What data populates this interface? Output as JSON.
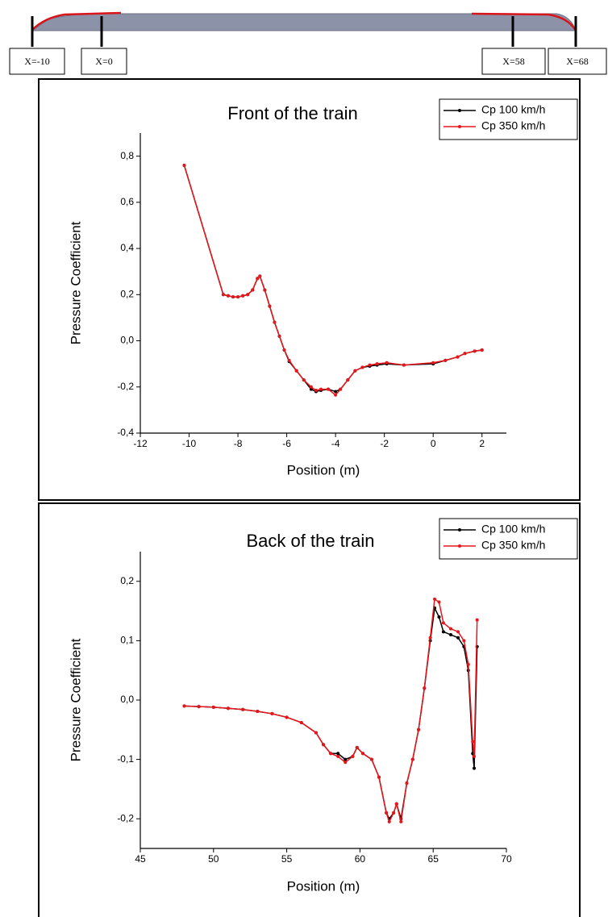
{
  "diagram": {
    "labels": [
      "X=-10",
      "X=0",
      "X=58",
      "X=68"
    ]
  },
  "chart_data": [
    {
      "type": "line",
      "title": "Front of the train",
      "x_label": "Position (m)",
      "y_label": "Pressure Coefficient",
      "xlim": [
        -12,
        3
      ],
      "xticks": [
        -12,
        -10,
        -8,
        -6,
        -4,
        -2,
        0,
        2
      ],
      "ylim": [
        -0.4,
        0.9
      ],
      "yticks": [
        {
          "value": -0.4,
          "label": "-0,4"
        },
        {
          "value": -0.2,
          "label": "-0,2"
        },
        {
          "value": 0,
          "label": "0,0"
        },
        {
          "value": 0.2,
          "label": "0,2"
        },
        {
          "value": 0.4,
          "label": "0,4"
        },
        {
          "value": 0.6,
          "label": "0,6"
        },
        {
          "value": 0.8,
          "label": "0,8"
        }
      ],
      "legend": "upper right",
      "x": [
        -10.2,
        -8.6,
        -8.4,
        -8.2,
        -8.0,
        -7.8,
        -7.6,
        -7.4,
        -7.2,
        -7.1,
        -6.9,
        -6.7,
        -6.5,
        -6.3,
        -6.1,
        -5.9,
        -5.6,
        -5.3,
        -5.0,
        -4.8,
        -4.6,
        -4.3,
        -4.0,
        -3.8,
        -3.5,
        -3.2,
        -2.9,
        -2.6,
        -2.3,
        -1.9,
        -1.2,
        0,
        0.5,
        1.0,
        1.3,
        1.7,
        2.0
      ],
      "series": [
        {
          "name": "Cp 100 km/h",
          "color": "#000000",
          "values": [
            0.76,
            0.2,
            0.195,
            0.19,
            0.19,
            0.195,
            0.2,
            0.22,
            0.27,
            0.28,
            0.22,
            0.15,
            0.08,
            0.02,
            -0.04,
            -0.09,
            -0.13,
            -0.17,
            -0.21,
            -0.22,
            -0.215,
            -0.21,
            -0.22,
            -0.21,
            -0.17,
            -0.13,
            -0.115,
            -0.11,
            -0.105,
            -0.1,
            -0.105,
            -0.1,
            -0.085,
            -0.07,
            -0.055,
            -0.045,
            -0.04
          ]
        },
        {
          "name": "Cp 350 km/h",
          "color": "#e8161b",
          "values": [
            0.76,
            0.2,
            0.195,
            0.19,
            0.19,
            0.195,
            0.2,
            0.22,
            0.27,
            0.28,
            0.22,
            0.15,
            0.08,
            0.02,
            -0.04,
            -0.085,
            -0.13,
            -0.17,
            -0.2,
            -0.215,
            -0.21,
            -0.21,
            -0.235,
            -0.21,
            -0.17,
            -0.13,
            -0.115,
            -0.105,
            -0.1,
            -0.095,
            -0.105,
            -0.095,
            -0.085,
            -0.07,
            -0.055,
            -0.045,
            -0.04
          ]
        }
      ]
    },
    {
      "type": "line",
      "title": "Back of the train",
      "x_label": "Position (m)",
      "y_label": "Pressure Coefficient",
      "xlim": [
        45,
        70
      ],
      "xticks": [
        45,
        50,
        55,
        60,
        65,
        70
      ],
      "ylim": [
        -0.25,
        0.25
      ],
      "yticks": [
        {
          "value": -0.2,
          "label": "-0,2"
        },
        {
          "value": -0.1,
          "label": "-0,1"
        },
        {
          "value": 0,
          "label": "0,0"
        },
        {
          "value": 0.1,
          "label": "0,1"
        },
        {
          "value": 0.2,
          "label": "0,2"
        }
      ],
      "legend": "upper right",
      "x": [
        48,
        49,
        50,
        51,
        52,
        53,
        54,
        55,
        56,
        57,
        57.5,
        58,
        58.5,
        59,
        59.5,
        59.8,
        60.2,
        60.8,
        61.3,
        61.8,
        62,
        62.3,
        62.5,
        62.8,
        63.2,
        63.6,
        64,
        64.4,
        64.8,
        65.1,
        65.4,
        65.7,
        66.2,
        66.7,
        67.1,
        67.4,
        67.7,
        67.8,
        68
      ],
      "series": [
        {
          "name": "Cp 100 km/h",
          "color": "#000000",
          "values": [
            -0.01,
            -0.011,
            -0.012,
            -0.014,
            -0.016,
            -0.019,
            -0.023,
            -0.029,
            -0.038,
            -0.055,
            -0.075,
            -0.09,
            -0.09,
            -0.1,
            -0.095,
            -0.08,
            -0.09,
            -0.1,
            -0.13,
            -0.19,
            -0.2,
            -0.19,
            -0.175,
            -0.2,
            -0.14,
            -0.1,
            -0.05,
            0.02,
            0.1,
            0.155,
            0.14,
            0.115,
            0.11,
            0.105,
            0.09,
            0.05,
            -0.09,
            -0.115,
            0.09
          ]
        },
        {
          "name": "Cp 350 km/h",
          "color": "#e8161b",
          "values": [
            -0.01,
            -0.011,
            -0.012,
            -0.014,
            -0.016,
            -0.019,
            -0.023,
            -0.029,
            -0.038,
            -0.055,
            -0.075,
            -0.09,
            -0.095,
            -0.105,
            -0.095,
            -0.08,
            -0.09,
            -0.1,
            -0.13,
            -0.19,
            -0.205,
            -0.19,
            -0.175,
            -0.205,
            -0.14,
            -0.1,
            -0.05,
            0.02,
            0.105,
            0.17,
            0.165,
            0.13,
            0.12,
            0.115,
            0.1,
            0.06,
            -0.07,
            -0.095,
            0.135
          ]
        }
      ]
    }
  ]
}
